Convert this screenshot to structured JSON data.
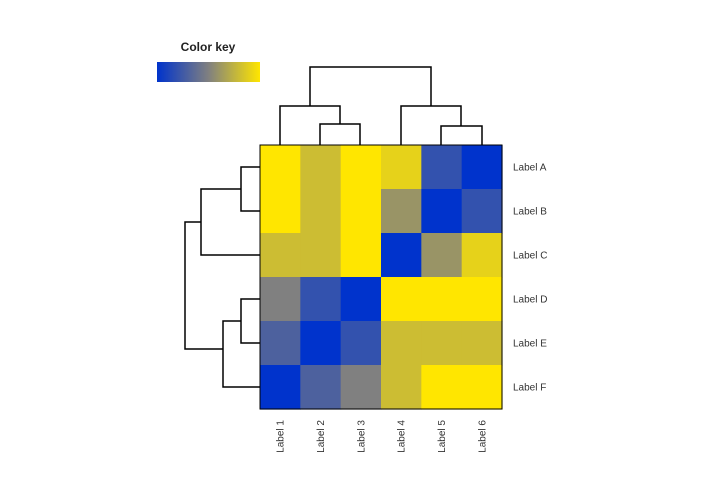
{
  "chart_data": {
    "type": "heatmap",
    "title": "",
    "xlabel": "",
    "ylabel": "",
    "columns": [
      "Label 1",
      "Label 2",
      "Label 3",
      "Label 4",
      "Label 5",
      "Label 6"
    ],
    "rows": [
      "Label A",
      "Label B",
      "Label C",
      "Label D",
      "Label E",
      "Label F"
    ],
    "values": [
      [
        1.0,
        0.8,
        1.0,
        0.9,
        0.2,
        0.0
      ],
      [
        1.0,
        0.8,
        1.0,
        0.6,
        0.0,
        0.2
      ],
      [
        0.8,
        0.8,
        1.0,
        0.0,
        0.6,
        0.9
      ],
      [
        0.5,
        0.2,
        0.0,
        1.0,
        1.0,
        1.0
      ],
      [
        0.3,
        0.0,
        0.2,
        0.8,
        0.8,
        0.8
      ],
      [
        0.0,
        0.3,
        0.5,
        0.8,
        1.0,
        1.0
      ]
    ],
    "value_range": [
      0,
      1
    ],
    "color_key": {
      "title": "Color key",
      "low_color": "#0033cc",
      "mid_color": "#808080",
      "high_color": "#ffe600"
    },
    "column_dendrogram": "((Label 1,(Label 2,Label 3)),(Label 4,(Label 5,Label 6)))",
    "row_dendrogram": "(((Label A,Label B),Label C),((Label D,Label E),Label F))",
    "legend_position": "top-left",
    "grid": false
  }
}
